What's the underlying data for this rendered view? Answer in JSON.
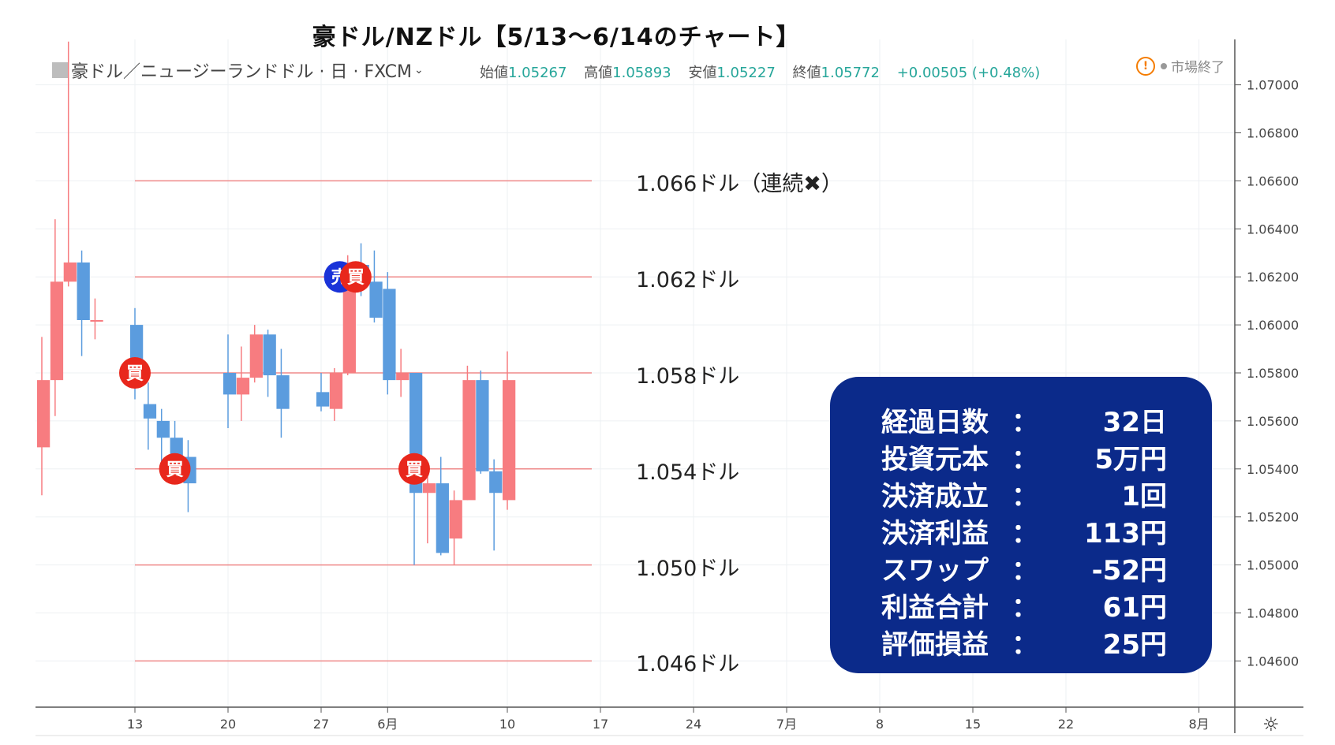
{
  "header": {
    "title": "豪ドル/NZドル【5/13〜6/14のチャート】",
    "symbol": "豪ドル／ニュージーランドドル · 日 · FXCM",
    "status": "市場終了",
    "ohlc": {
      "open_label": "始値",
      "open": "1.05267",
      "high_label": "高値",
      "high": "1.05893",
      "low_label": "安値",
      "low": "1.05227",
      "close_label": "終値",
      "close": "1.05772",
      "change": "+0.00505 (+0.48%)"
    }
  },
  "colors": {
    "up": "#f77c80",
    "down": "#5b9cde",
    "level_line": "#ef8a8a",
    "box": "#0b2a8a",
    "buy_marker": "#e8271c",
    "sell_marker": "#1a33d8"
  },
  "chart_data": {
    "type": "candlestick",
    "y_range": [
      1.045,
      1.0718
    ],
    "y_ticks": [
      1.046,
      1.048,
      1.05,
      1.052,
      1.054,
      1.056,
      1.058,
      1.06,
      1.062,
      1.064,
      1.066,
      1.068,
      1.07
    ],
    "x_ticks": [
      {
        "label": "13",
        "day": 13
      },
      {
        "label": "20",
        "day": 20
      },
      {
        "label": "27",
        "day": 27
      },
      {
        "label": "6月",
        "day": 32
      },
      {
        "label": "10",
        "day": 41
      },
      {
        "label": "17",
        "day": 48
      },
      {
        "label": "24",
        "day": 55
      },
      {
        "label": "7月",
        "day": 62
      },
      {
        "label": "8",
        "day": 69
      },
      {
        "label": "15",
        "day": 76
      },
      {
        "label": "22",
        "day": 83
      },
      {
        "label": "8月",
        "day": 93
      }
    ],
    "candles": [
      {
        "day": 6,
        "open": 1.0549,
        "high": 1.0595,
        "low": 1.0529,
        "close": 1.0577
      },
      {
        "day": 7,
        "open": 1.0577,
        "high": 1.0644,
        "low": 1.0562,
        "close": 1.0618
      },
      {
        "day": 8,
        "open": 1.0618,
        "high": 1.0718,
        "low": 1.0616,
        "close": 1.0626
      },
      {
        "day": 9,
        "open": 1.0626,
        "high": 1.0631,
        "low": 1.0587,
        "close": 1.0602
      },
      {
        "day": 10,
        "open": 1.0602,
        "high": 1.0611,
        "low": 1.0594,
        "close": 1.0602
      },
      {
        "day": 13,
        "open": 1.06,
        "high": 1.0607,
        "low": 1.0569,
        "close": 1.0578
      },
      {
        "day": 14,
        "open": 1.0567,
        "high": 1.0576,
        "low": 1.0548,
        "close": 1.0561
      },
      {
        "day": 15,
        "open": 1.056,
        "high": 1.0565,
        "low": 1.0537,
        "close": 1.0553
      },
      {
        "day": 16,
        "open": 1.0553,
        "high": 1.056,
        "low": 1.0539,
        "close": 1.0542
      },
      {
        "day": 17,
        "open": 1.0545,
        "high": 1.0552,
        "low": 1.0522,
        "close": 1.0534
      },
      {
        "day": 20,
        "open": 1.058,
        "high": 1.0596,
        "low": 1.0557,
        "close": 1.0571
      },
      {
        "day": 21,
        "open": 1.0571,
        "high": 1.0591,
        "low": 1.056,
        "close": 1.0578
      },
      {
        "day": 22,
        "open": 1.0578,
        "high": 1.06,
        "low": 1.0576,
        "close": 1.0596
      },
      {
        "day": 23,
        "open": 1.0596,
        "high": 1.0598,
        "low": 1.057,
        "close": 1.0579
      },
      {
        "day": 24,
        "open": 1.0579,
        "high": 1.059,
        "low": 1.0553,
        "close": 1.0565
      },
      {
        "day": 27,
        "open": 1.0572,
        "high": 1.058,
        "low": 1.0564,
        "close": 1.0566
      },
      {
        "day": 28,
        "open": 1.0565,
        "high": 1.0582,
        "low": 1.056,
        "close": 1.058
      },
      {
        "day": 29,
        "open": 1.058,
        "high": 1.0629,
        "low": 1.0579,
        "close": 1.0617
      },
      {
        "day": 30,
        "open": 1.0625,
        "high": 1.0634,
        "low": 1.0612,
        "close": 1.0619
      },
      {
        "day": 31,
        "open": 1.0618,
        "high": 1.0631,
        "low": 1.0601,
        "close": 1.0603
      },
      {
        "day": 32,
        "open": 1.0615,
        "high": 1.0622,
        "low": 1.0571,
        "close": 1.0577
      },
      {
        "day": 33,
        "open": 1.0577,
        "high": 1.059,
        "low": 1.057,
        "close": 1.058
      },
      {
        "day": 34,
        "open": 1.058,
        "high": 1.058,
        "low": 1.05,
        "close": 1.053
      },
      {
        "day": 35,
        "open": 1.053,
        "high": 1.0539,
        "low": 1.0509,
        "close": 1.0534
      },
      {
        "day": 36,
        "open": 1.0534,
        "high": 1.0545,
        "low": 1.0504,
        "close": 1.0505
      },
      {
        "day": 37,
        "open": 1.0511,
        "high": 1.0531,
        "low": 1.05,
        "close": 1.0527
      },
      {
        "day": 38,
        "open": 1.0527,
        "high": 1.0583,
        "low": 1.0527,
        "close": 1.0577
      },
      {
        "day": 39,
        "open": 1.0577,
        "high": 1.0581,
        "low": 1.0538,
        "close": 1.0539
      },
      {
        "day": 40,
        "open": 1.0539,
        "high": 1.0544,
        "low": 1.0506,
        "close": 1.053
      },
      {
        "day": 41,
        "open": 1.0527,
        "high": 1.0589,
        "low": 1.0523,
        "close": 1.0577
      }
    ],
    "levels": [
      {
        "price": 1.066,
        "label": "1.066ドル（連続✖）"
      },
      {
        "price": 1.062,
        "label": "1.062ドル"
      },
      {
        "price": 1.058,
        "label": "1.058ドル"
      },
      {
        "price": 1.054,
        "label": "1.054ドル"
      },
      {
        "price": 1.05,
        "label": "1.050ドル"
      },
      {
        "price": 1.046,
        "label": "1.046ドル"
      }
    ],
    "markers": [
      {
        "type": "buy",
        "text": "買",
        "day": 13,
        "price": 1.058
      },
      {
        "type": "buy",
        "text": "買",
        "day": 16,
        "price": 1.054
      },
      {
        "type": "sell",
        "text": "売",
        "day": 28.4,
        "price": 1.062
      },
      {
        "type": "buy",
        "text": "買",
        "day": 29.6,
        "price": 1.062
      },
      {
        "type": "buy",
        "text": "買",
        "day": 34,
        "price": 1.054
      }
    ]
  },
  "stats": [
    {
      "label": "経過日数",
      "sep": "：",
      "value": "32日"
    },
    {
      "label": "投資元本",
      "sep": "：",
      "value": "5万円"
    },
    {
      "label": "決済成立",
      "sep": "：",
      "value": "1回"
    },
    {
      "label": "決済利益",
      "sep": "：",
      "value": "113円"
    },
    {
      "label": "スワップ",
      "sep": "：",
      "value": "-52円"
    },
    {
      "label": "利益合計",
      "sep": "：",
      "value": "61円"
    },
    {
      "label": "評価損益",
      "sep": "：",
      "value": "25円"
    }
  ]
}
